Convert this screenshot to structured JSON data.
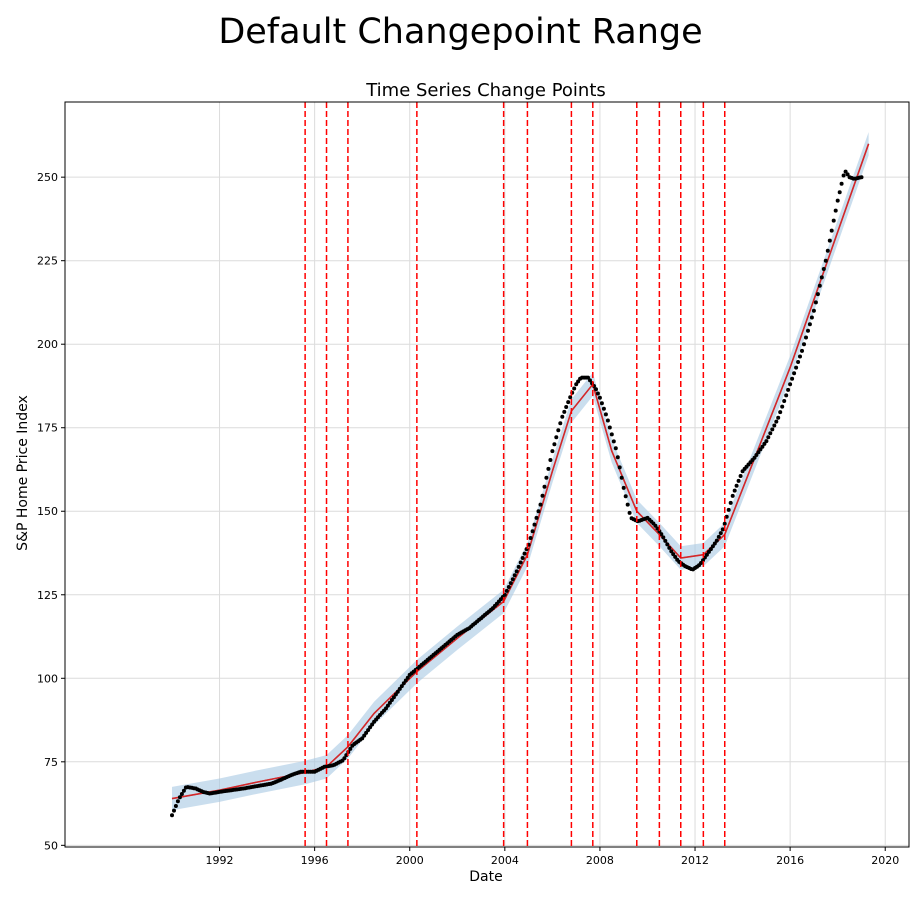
{
  "figure": {
    "suptitle": "Default Changepoint Range"
  },
  "chart_data": {
    "type": "line",
    "title": "Time Series Change Points",
    "xlabel": "Date",
    "ylabel": "S&P Home Price Index",
    "xlim": [
      1985.5,
      2021.0
    ],
    "ylim": [
      49.5,
      272.5
    ],
    "xticks": [
      1992,
      1996,
      2000,
      2004,
      2008,
      2012,
      2016,
      2020
    ],
    "yticks": [
      50,
      75,
      100,
      125,
      150,
      175,
      200,
      225,
      250
    ],
    "grid": true,
    "colors": {
      "observed": "#000000",
      "trend": "#d62728",
      "forecast": "#0072B2",
      "uncertainty": "#a6c8e2",
      "changepoint": "#ff0000",
      "grid": "#dcdcdc"
    },
    "changepoints": [
      1995.6,
      1996.5,
      1997.4,
      2000.3,
      2003.95,
      2004.95,
      2006.8,
      2007.7,
      2009.55,
      2010.5,
      2011.4,
      2012.35,
      2013.25
    ],
    "forecast": {
      "x": [
        1990.0,
        1992.0,
        1993.5,
        1995.6,
        1996.5,
        1997.4,
        1998.5,
        2000.3,
        2002.0,
        2003.95,
        2004.95,
        2006.0,
        2006.8,
        2007.7,
        2008.5,
        2009.55,
        2010.5,
        2011.4,
        2012.35,
        2013.25,
        2016.0,
        2019.3
      ],
      "y": [
        64,
        66.5,
        68.8,
        71.8,
        73.5,
        79.5,
        89.5,
        102,
        112,
        123,
        137,
        162,
        180,
        188,
        168,
        150,
        143,
        136,
        137,
        143,
        193,
        260
      ],
      "band": 3.5
    },
    "observed": {
      "x": [
        1990.0,
        1990.3,
        1990.6,
        1991.0,
        1991.3,
        1991.6,
        1992.0,
        1992.5,
        1993.0,
        1993.4,
        1993.8,
        1994.2,
        1994.7,
        1995.0,
        1995.4,
        1995.7,
        1996.0,
        1996.4,
        1996.8,
        1997.2,
        1997.6,
        1998.0,
        1998.5,
        1999.0,
        1999.5,
        2000.0,
        2000.5,
        2001.0,
        2001.5,
        2002.0,
        2002.5,
        2003.0,
        2003.5,
        2004.0,
        2004.5,
        2005.0,
        2005.5,
        2006.0,
        2006.4,
        2006.8,
        2007.0,
        2007.2,
        2007.5,
        2007.8,
        2008.0,
        2008.3,
        2008.7,
        2009.0,
        2009.3,
        2009.6,
        2010.0,
        2010.3,
        2010.6,
        2011.0,
        2011.3,
        2011.6,
        2011.9,
        2012.2,
        2012.5,
        2012.9,
        2013.2,
        2013.6,
        2014.0,
        2014.5,
        2015.0,
        2015.5,
        2016.0,
        2016.5,
        2017.0,
        2017.5,
        2018.0,
        2018.3,
        2018.5,
        2018.7,
        2019.0
      ],
      "y": [
        59,
        64,
        67.5,
        67,
        66,
        65.5,
        66,
        66.5,
        67,
        67.5,
        68,
        68.5,
        70,
        71,
        72,
        72,
        72,
        73.5,
        74,
        75.5,
        80,
        82,
        87,
        91,
        96,
        101,
        104,
        107,
        110,
        113,
        115,
        118,
        121,
        125,
        132,
        140,
        152,
        168,
        178,
        185,
        188,
        190,
        190,
        187,
        184,
        178,
        168,
        157,
        148,
        147,
        148,
        146,
        143,
        138,
        135,
        133.5,
        132.5,
        134,
        137,
        141,
        145,
        155,
        162,
        166,
        171,
        178,
        188,
        198,
        210,
        225,
        243,
        252,
        250,
        249.5,
        250
      ]
    }
  }
}
